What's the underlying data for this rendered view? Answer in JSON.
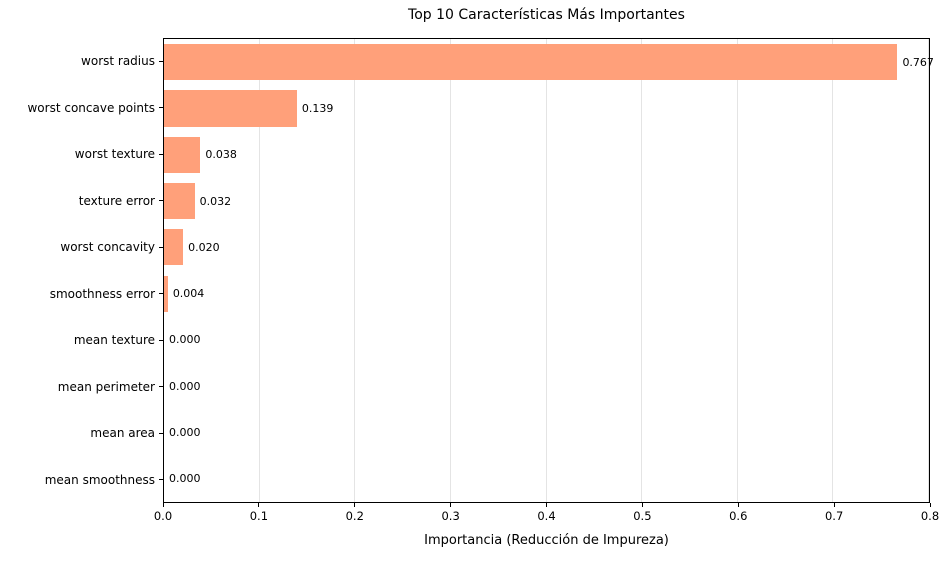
{
  "chart_data": {
    "type": "bar",
    "orientation": "horizontal",
    "title": "Top 10 Características Más Importantes",
    "xlabel": "Importancia (Reducción de Impureza)",
    "ylabel": "",
    "categories": [
      "worst radius",
      "worst concave points",
      "worst texture",
      "texture error",
      "worst concavity",
      "smoothness error",
      "mean texture",
      "mean perimeter",
      "mean area",
      "mean smoothness"
    ],
    "values": [
      0.767,
      0.139,
      0.038,
      0.032,
      0.02,
      0.004,
      0.0,
      0.0,
      0.0,
      0.0
    ],
    "value_labels": [
      "0.767",
      "0.139",
      "0.038",
      "0.032",
      "0.020",
      "0.004",
      "0.000",
      "0.000",
      "0.000",
      "0.000"
    ],
    "xlim": [
      0.0,
      0.8
    ],
    "xticks": [
      "0.0",
      "0.1",
      "0.2",
      "0.3",
      "0.4",
      "0.5",
      "0.6",
      "0.7",
      "0.8"
    ],
    "bar_color": "#FFA07A",
    "grid": true,
    "legend": "none"
  }
}
